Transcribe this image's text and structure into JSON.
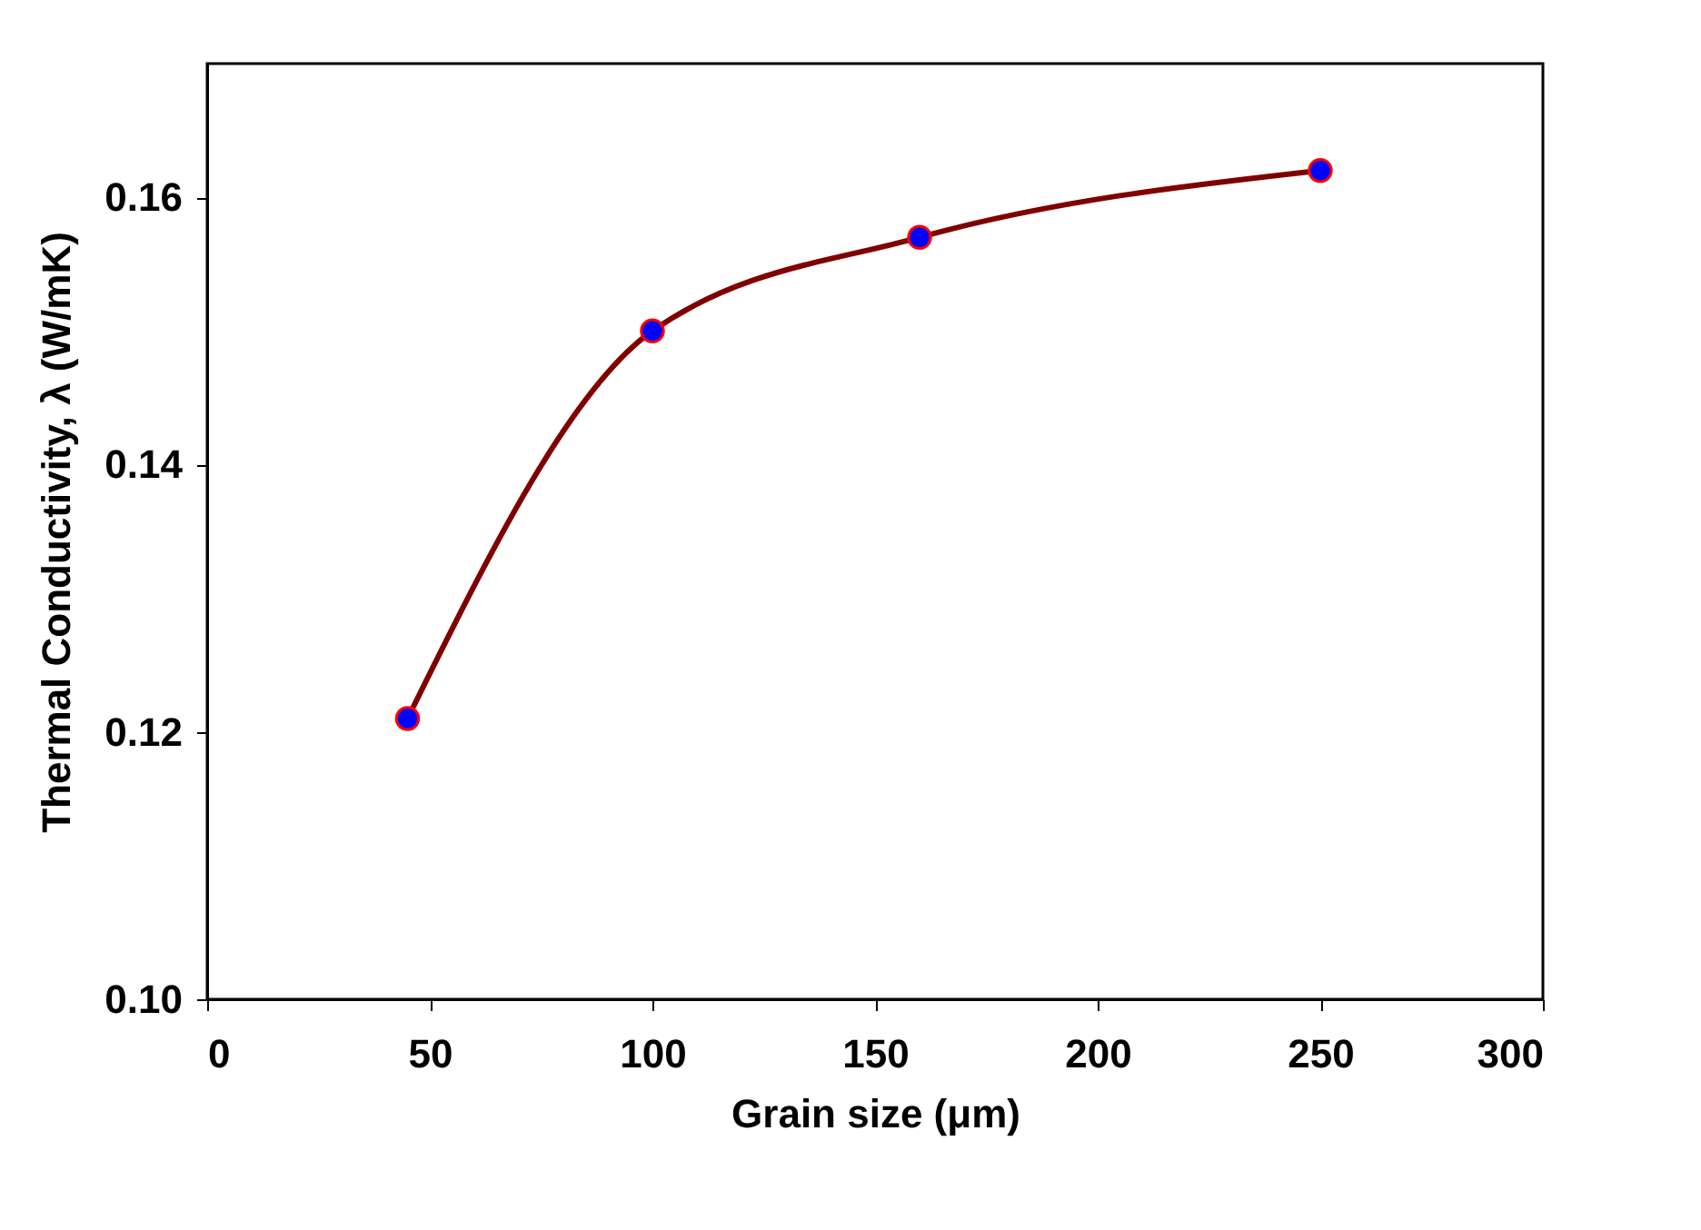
{
  "chart_data": {
    "type": "line",
    "xlabel": "Grain size (μm)",
    "ylabel": "Thermal Conductivity, λ (W/mK)",
    "x": [
      45,
      100,
      160,
      250
    ],
    "series": [
      {
        "color": "#800000",
        "colors": [
          "#0000ff",
          "#0000ff",
          "#0000ff",
          "#0000ff"
        ],
        "values": [
          0.121,
          0.15,
          0.157,
          0.162
        ]
      }
    ],
    "xlim": [
      0,
      300
    ],
    "xticks": [
      0,
      50,
      100,
      150,
      200,
      250,
      300
    ],
    "ylim": [
      0.1,
      0.17
    ],
    "yticks": [
      {
        "value": 0.1,
        "label": "0.10"
      },
      {
        "value": 0.12,
        "label": "0.12"
      },
      {
        "value": 0.14,
        "label": "0.14"
      },
      {
        "value": 0.16,
        "label": "0.16"
      }
    ],
    "marker": "circle",
    "line_style": "solid",
    "grid": false
  }
}
